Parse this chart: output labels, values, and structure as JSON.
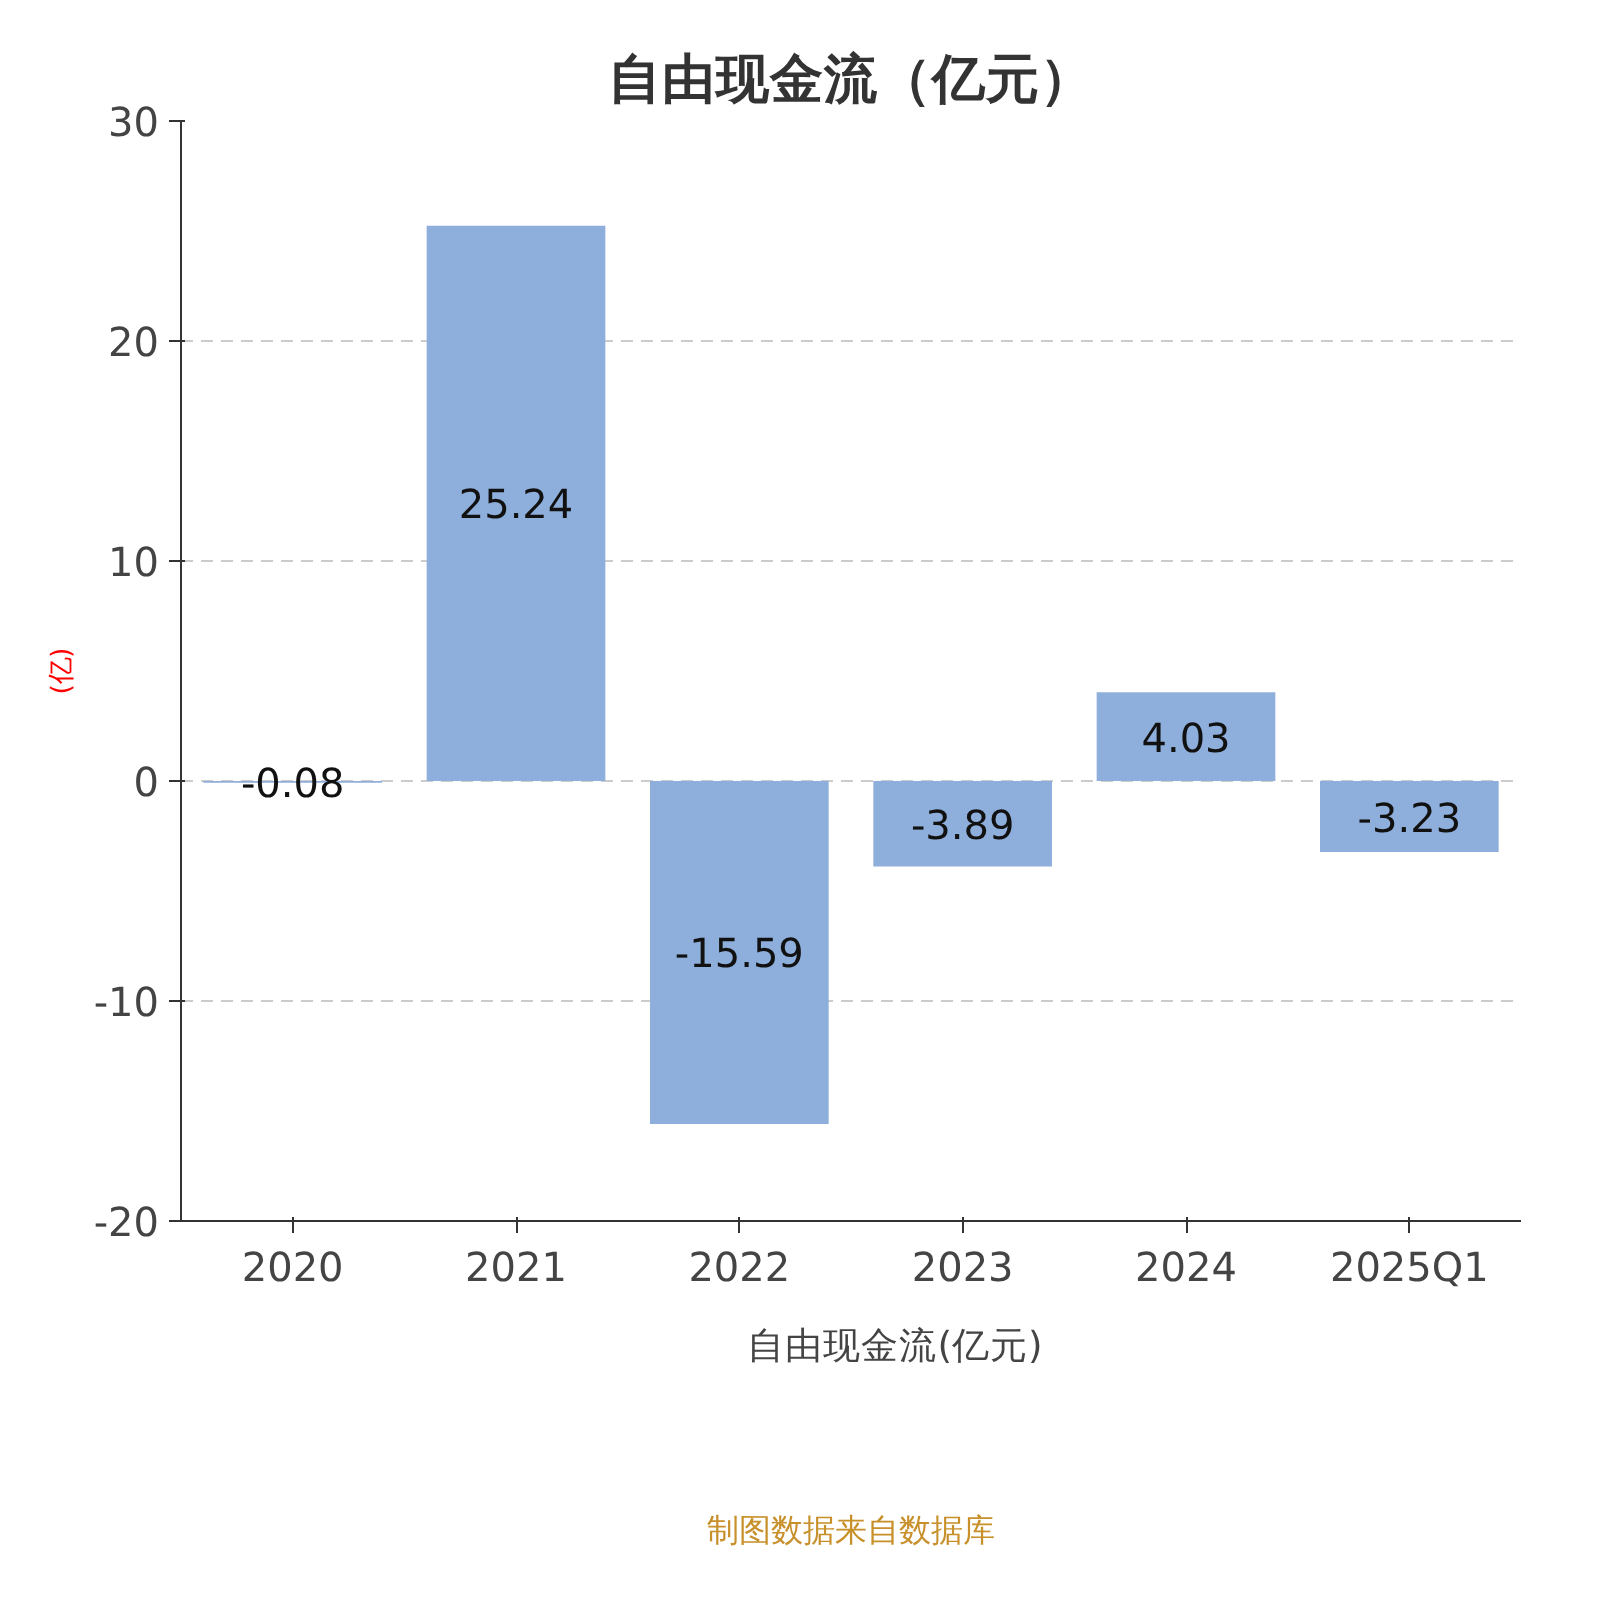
{
  "chart_data": {
    "type": "bar",
    "title": "自由现金流（亿元）",
    "ylabel": "(亿)",
    "categories": [
      "2020",
      "2021",
      "2022",
      "2023",
      "2024",
      "2025Q1"
    ],
    "series": [
      {
        "name": "自由现金流(亿元)",
        "color": "#8eaedb",
        "values": [
          -0.08,
          25.24,
          -15.59,
          -3.89,
          4.03,
          -3.23
        ]
      }
    ],
    "ylim": [
      -20,
      30
    ],
    "yticks": [
      -20,
      -10,
      0,
      10,
      20,
      30
    ],
    "grid": "y",
    "legend": "bottom",
    "data_labels": true,
    "annotations": [
      "制图数据来自数据库"
    ]
  }
}
